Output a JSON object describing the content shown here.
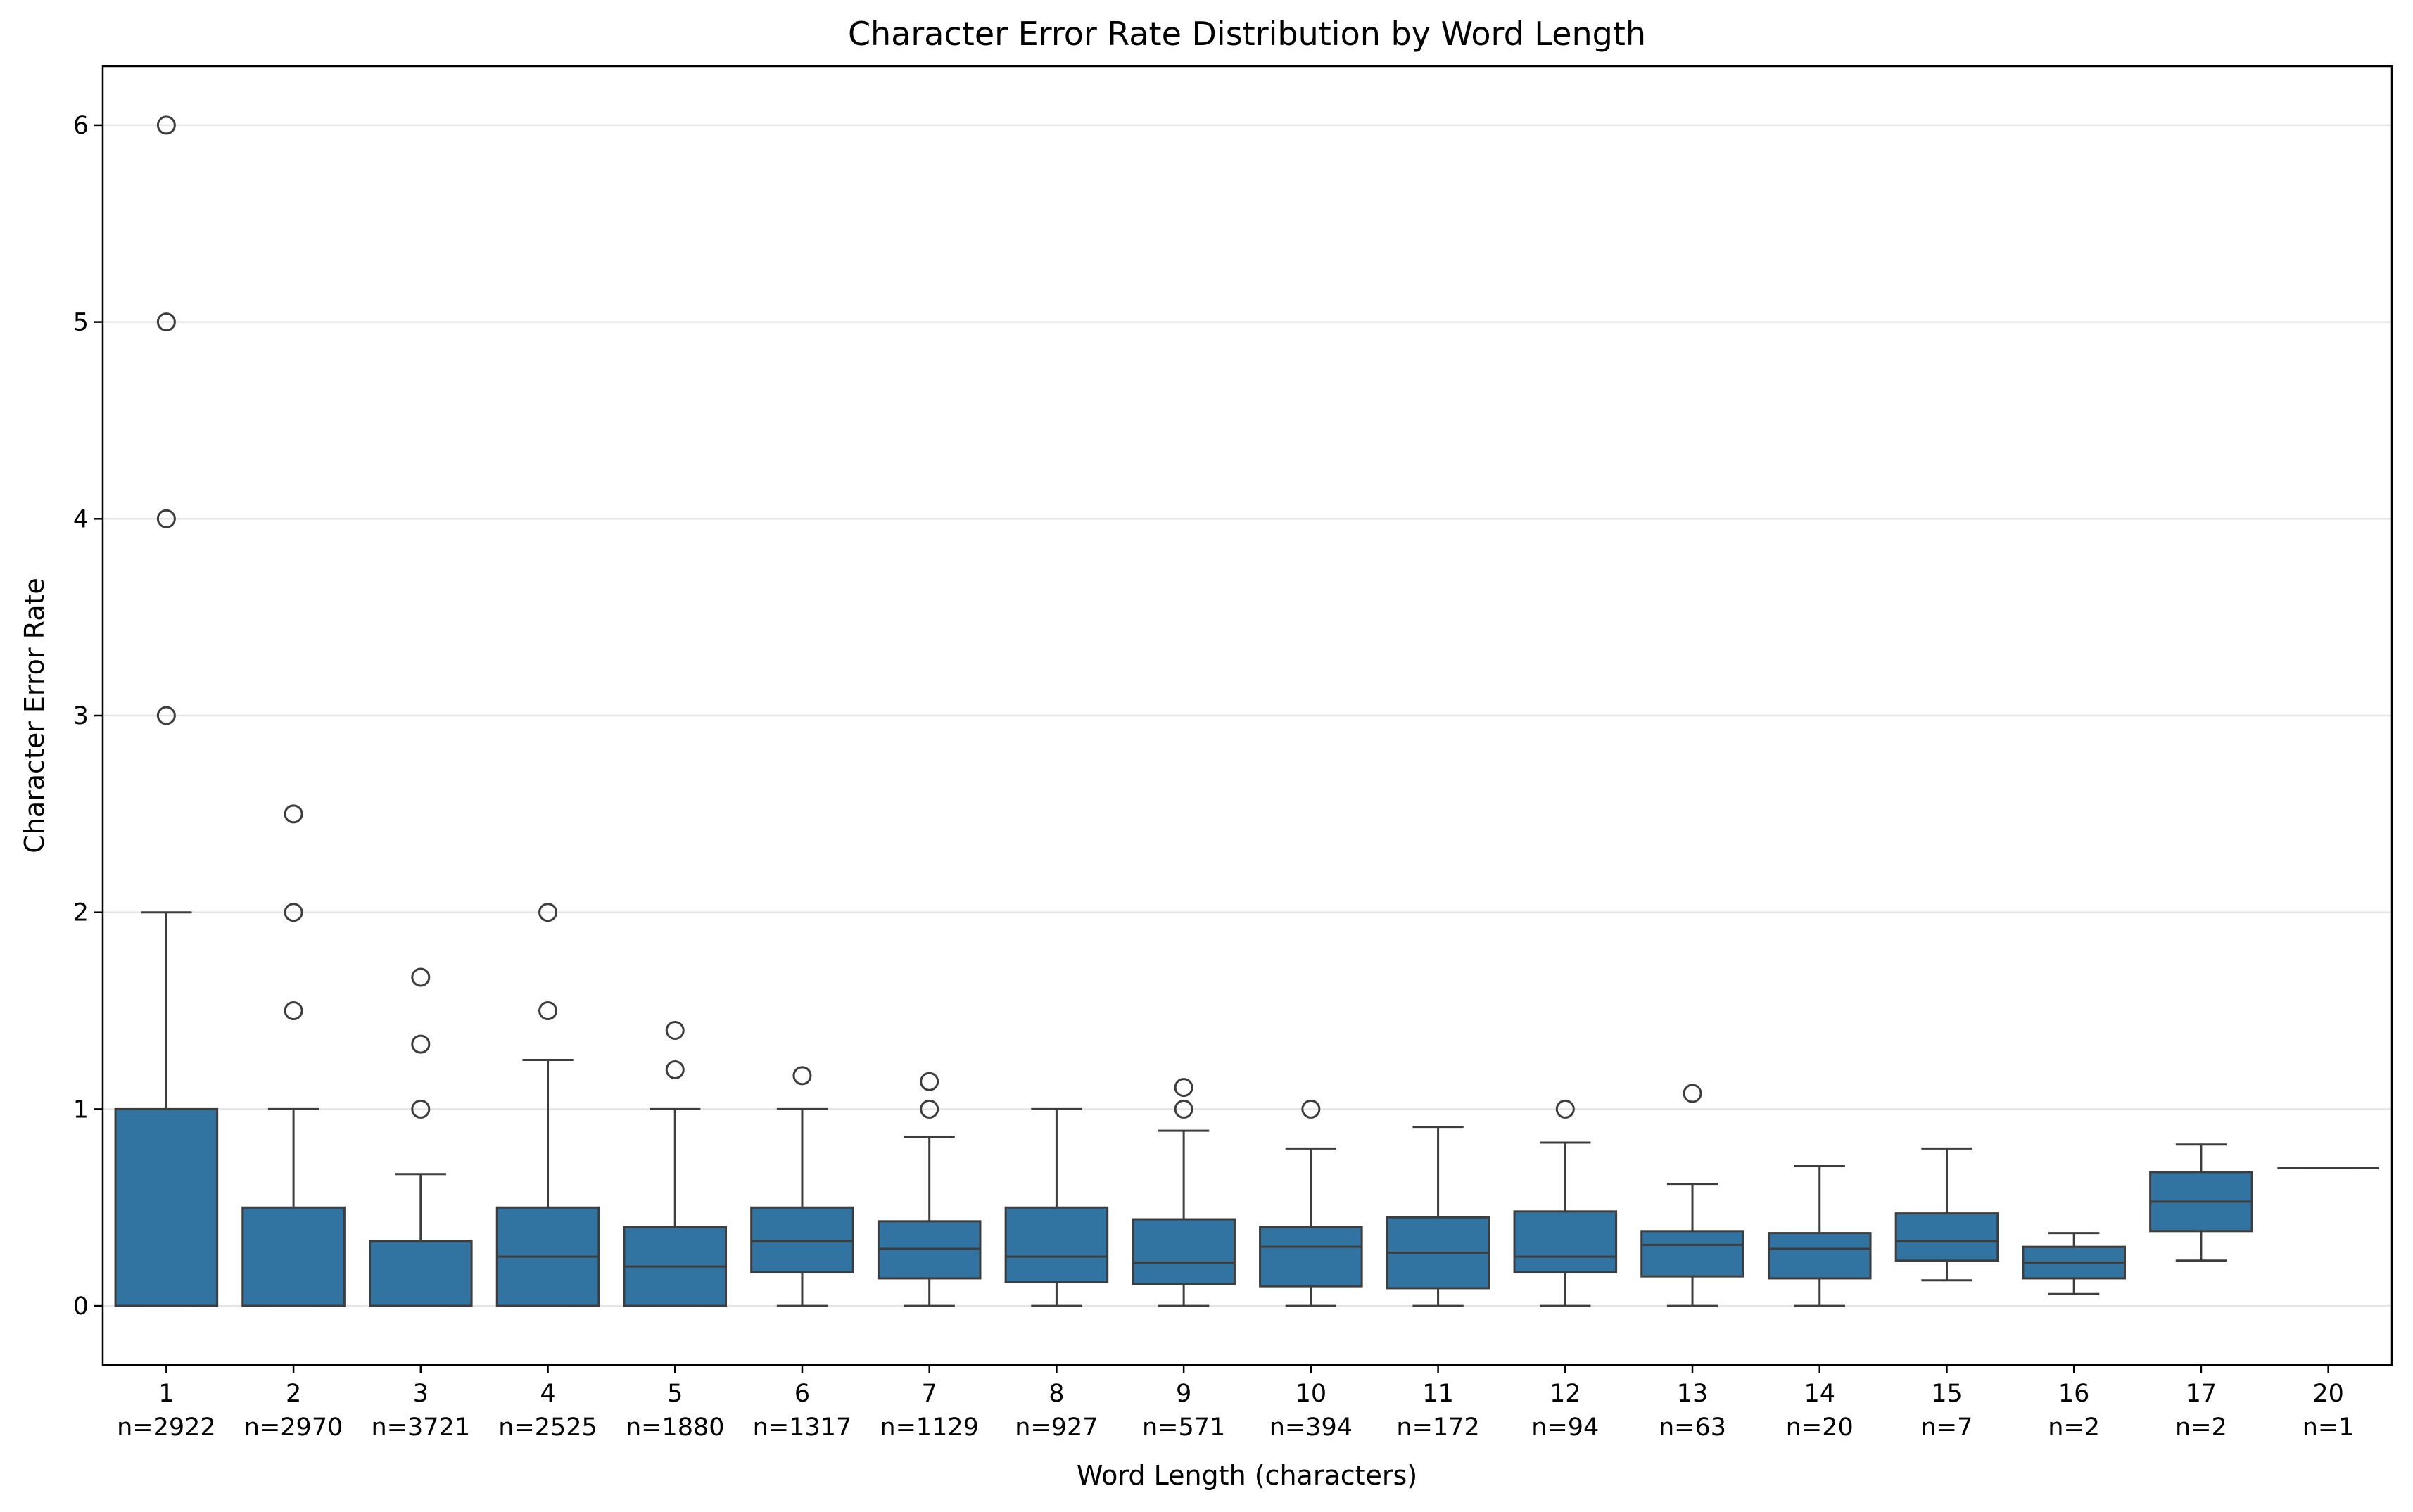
{
  "chart_data": {
    "type": "box",
    "title": "Character Error Rate Distribution by Word Length",
    "xlabel": "Word Length (characters)",
    "ylabel": "Character Error Rate",
    "ylim": [
      -0.3,
      6.3
    ],
    "yticks": [
      0,
      1,
      2,
      3,
      4,
      5,
      6
    ],
    "grid": "y-axis",
    "box_color": "#3274a1",
    "line_color": "#3d3d3d",
    "categories": [
      {
        "label": "1",
        "n_label": "n=2922",
        "q1": 0,
        "median": 0,
        "q3": 1.0,
        "whisker_low": 0,
        "whisker_high": 2.0,
        "outliers": [
          3.0,
          4.0,
          5.0,
          6.0
        ]
      },
      {
        "label": "2",
        "n_label": "n=2970",
        "q1": 0,
        "median": 0,
        "q3": 0.5,
        "whisker_low": 0,
        "whisker_high": 1.0,
        "outliers": [
          1.5,
          2.0,
          2.5
        ]
      },
      {
        "label": "3",
        "n_label": "n=3721",
        "q1": 0,
        "median": 0,
        "q3": 0.33,
        "whisker_low": 0,
        "whisker_high": 0.67,
        "outliers": [
          1.0,
          1.33,
          1.67
        ]
      },
      {
        "label": "4",
        "n_label": "n=2525",
        "q1": 0,
        "median": 0.25,
        "q3": 0.5,
        "whisker_low": 0,
        "whisker_high": 1.25,
        "outliers": [
          1.5,
          2.0
        ]
      },
      {
        "label": "5",
        "n_label": "n=1880",
        "q1": 0,
        "median": 0.2,
        "q3": 0.4,
        "whisker_low": 0,
        "whisker_high": 1.0,
        "outliers": [
          1.2,
          1.4
        ]
      },
      {
        "label": "6",
        "n_label": "n=1317",
        "q1": 0.17,
        "median": 0.33,
        "q3": 0.5,
        "whisker_low": 0,
        "whisker_high": 1.0,
        "outliers": [
          1.17
        ]
      },
      {
        "label": "7",
        "n_label": "n=1129",
        "q1": 0.14,
        "median": 0.29,
        "q3": 0.43,
        "whisker_low": 0,
        "whisker_high": 0.86,
        "outliers": [
          1.0,
          1.14
        ]
      },
      {
        "label": "8",
        "n_label": "n=927",
        "q1": 0.12,
        "median": 0.25,
        "q3": 0.5,
        "whisker_low": 0,
        "whisker_high": 1.0,
        "outliers": []
      },
      {
        "label": "9",
        "n_label": "n=571",
        "q1": 0.11,
        "median": 0.22,
        "q3": 0.44,
        "whisker_low": 0,
        "whisker_high": 0.89,
        "outliers": [
          1.0,
          1.11
        ]
      },
      {
        "label": "10",
        "n_label": "n=394",
        "q1": 0.1,
        "median": 0.3,
        "q3": 0.4,
        "whisker_low": 0,
        "whisker_high": 0.8,
        "outliers": [
          1.0
        ]
      },
      {
        "label": "11",
        "n_label": "n=172",
        "q1": 0.09,
        "median": 0.27,
        "q3": 0.45,
        "whisker_low": 0,
        "whisker_high": 0.91,
        "outliers": []
      },
      {
        "label": "12",
        "n_label": "n=94",
        "q1": 0.17,
        "median": 0.25,
        "q3": 0.48,
        "whisker_low": 0,
        "whisker_high": 0.83,
        "outliers": [
          1.0
        ]
      },
      {
        "label": "13",
        "n_label": "n=63",
        "q1": 0.15,
        "median": 0.31,
        "q3": 0.38,
        "whisker_low": 0,
        "whisker_high": 0.62,
        "outliers": [
          1.08
        ]
      },
      {
        "label": "14",
        "n_label": "n=20",
        "q1": 0.14,
        "median": 0.29,
        "q3": 0.37,
        "whisker_low": 0,
        "whisker_high": 0.71,
        "outliers": []
      },
      {
        "label": "15",
        "n_label": "n=7",
        "q1": 0.23,
        "median": 0.33,
        "q3": 0.47,
        "whisker_low": 0.13,
        "whisker_high": 0.8,
        "outliers": []
      },
      {
        "label": "16",
        "n_label": "n=2",
        "q1": 0.14,
        "median": 0.22,
        "q3": 0.3,
        "whisker_low": 0.06,
        "whisker_high": 0.37,
        "outliers": []
      },
      {
        "label": "17",
        "n_label": "n=2",
        "q1": 0.38,
        "median": 0.53,
        "q3": 0.68,
        "whisker_low": 0.23,
        "whisker_high": 0.82,
        "outliers": []
      },
      {
        "label": "20",
        "n_label": "n=1",
        "q1": 0.7,
        "median": 0.7,
        "q3": 0.7,
        "whisker_low": 0.7,
        "whisker_high": 0.7,
        "outliers": []
      }
    ]
  }
}
